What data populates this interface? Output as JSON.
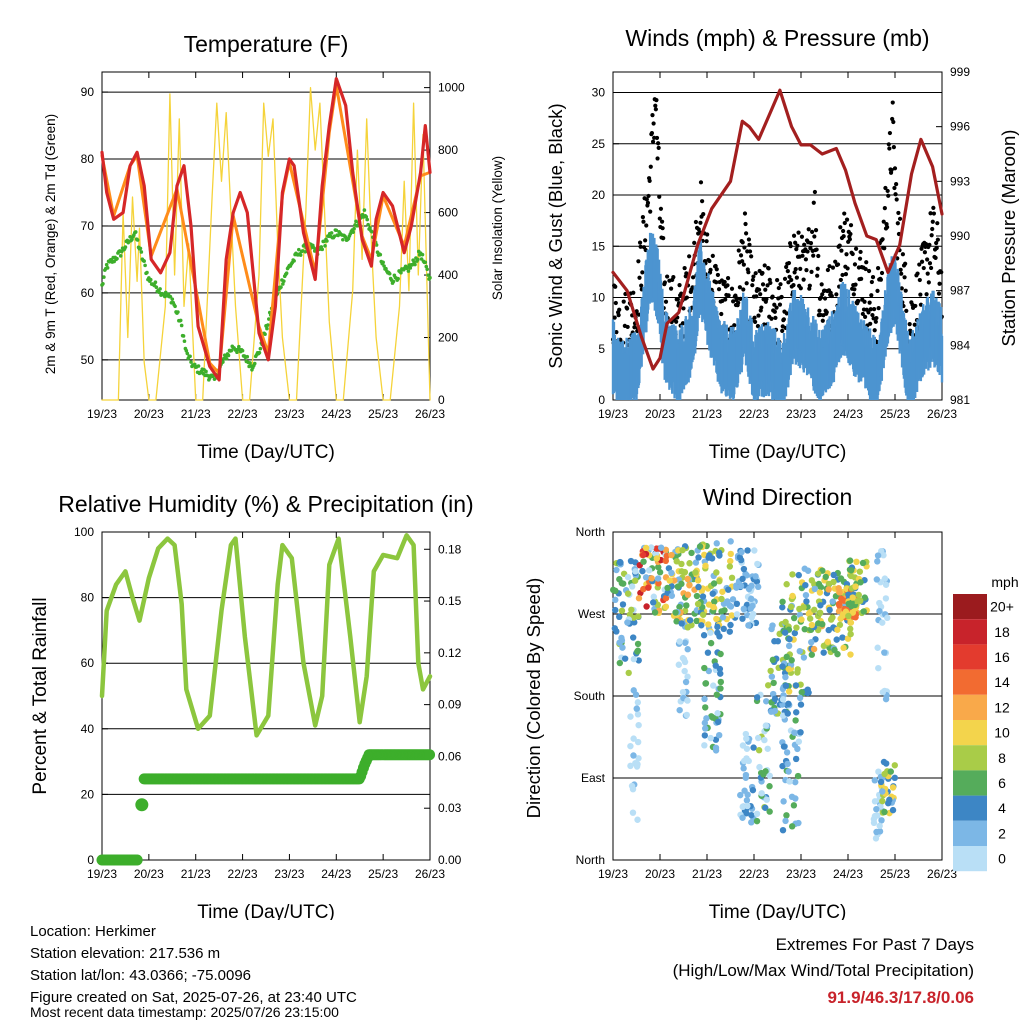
{
  "chart_data": [
    {
      "type": "line",
      "title": "Temperature (F)",
      "xlabel": "Time (Day/UTC)",
      "ylabel": "2m & 9m T (Red, Orange) & 2m Td (Green)",
      "ylabel_right": "Solar Insolation (Yellow)",
      "x_ticks": [
        "19/23",
        "20/23",
        "21/23",
        "22/23",
        "23/23",
        "24/23",
        "25/23",
        "26/23"
      ],
      "y_ticks": [
        "50",
        "60",
        "70",
        "80",
        "90"
      ],
      "y_ticks_right": [
        "0",
        "200",
        "400",
        "600",
        "800",
        "1000"
      ],
      "ylim": [
        44,
        93
      ],
      "ylim_right": [
        0,
        1050
      ],
      "grid": true,
      "x_units": "days since 19/23",
      "series": [
        {
          "name": "2m T",
          "color": "#d62728",
          "axis": "left",
          "x": [
            0,
            0.1,
            0.25,
            0.45,
            0.6,
            0.75,
            0.9,
            1.05,
            1.25,
            1.45,
            1.6,
            1.75,
            1.9,
            2.05,
            2.3,
            2.5,
            2.65,
            2.8,
            2.95,
            3.1,
            3.35,
            3.55,
            3.7,
            3.85,
            4.0,
            4.1,
            4.3,
            4.55,
            4.7,
            4.85,
            5.0,
            5.2,
            5.35,
            5.55,
            5.75,
            5.85,
            6.0,
            6.2,
            6.45,
            6.6,
            6.8,
            6.9,
            7.0
          ],
          "y": [
            81,
            75,
            71,
            72,
            79,
            81,
            76,
            65,
            63,
            66,
            76,
            79,
            70,
            55,
            49,
            47,
            65,
            72,
            75,
            72,
            54,
            50,
            58,
            75,
            80,
            79,
            69,
            62,
            76,
            85,
            92,
            88,
            78,
            68,
            64,
            71,
            75,
            73,
            66,
            70,
            78,
            85,
            78
          ]
        },
        {
          "name": "9m T",
          "color": "#ff8c1a",
          "axis": "left",
          "x": [
            0,
            0.25,
            0.6,
            0.75,
            1.05,
            1.6,
            2.3,
            2.5,
            2.8,
            3.35,
            3.55,
            3.85,
            4.0,
            4.55,
            4.85,
            5.0,
            5.55,
            5.75,
            6.0,
            6.45,
            6.8,
            7.0
          ],
          "y": [
            80.5,
            71.5,
            79,
            80.5,
            65.5,
            75.5,
            49.5,
            48,
            71.5,
            55,
            51,
            74.5,
            79.5,
            63,
            84,
            91,
            68.5,
            65,
            74.5,
            67,
            77.5,
            78
          ]
        },
        {
          "name": "2m Td",
          "color": "#3dae2b",
          "axis": "left",
          "x": [
            0,
            0.1,
            0.4,
            0.7,
            1.0,
            1.3,
            1.5,
            1.7,
            1.8,
            1.95,
            2.2,
            2.4,
            2.6,
            2.8,
            3.0,
            3.2,
            3.4,
            3.6,
            3.8,
            4.0,
            4.2,
            4.4,
            4.6,
            4.8,
            5.0,
            5.2,
            5.4,
            5.6,
            5.8,
            6.0,
            6.2,
            6.4,
            6.6,
            6.8,
            7.0
          ],
          "y": [
            61,
            64,
            66,
            69,
            62,
            60,
            59,
            55,
            51,
            49,
            48,
            47,
            50,
            52,
            51,
            49,
            52,
            57,
            61,
            64,
            66,
            67,
            66,
            68,
            69,
            68,
            70,
            72,
            68,
            64,
            62,
            63,
            64,
            66,
            62
          ]
        },
        {
          "name": "Solar Insolation",
          "color": "#f5d33a",
          "axis": "right",
          "x": [
            0,
            0.35,
            0.45,
            0.55,
            0.65,
            0.75,
            0.8,
            0.9,
            1.0,
            1.15,
            1.35,
            1.45,
            1.55,
            1.65,
            1.75,
            1.85,
            2.0,
            2.15,
            2.35,
            2.45,
            2.55,
            2.65,
            2.75,
            2.85,
            3.0,
            3.15,
            3.35,
            3.45,
            3.55,
            3.65,
            3.75,
            3.85,
            4.0,
            4.15,
            4.35,
            4.45,
            4.55,
            4.65,
            4.75,
            4.85,
            5.0,
            5.15,
            5.35,
            5.45,
            5.55,
            5.65,
            5.75,
            5.85,
            6.0,
            6.15,
            6.35,
            6.45,
            6.55,
            6.65,
            6.75,
            6.85,
            7.0
          ],
          "y": [
            0,
            0,
            600,
            200,
            650,
            380,
            550,
            120,
            0,
            0,
            300,
            980,
            400,
            900,
            300,
            500,
            0,
            0,
            650,
            950,
            700,
            920,
            600,
            300,
            0,
            0,
            400,
            950,
            780,
            900,
            500,
            200,
            0,
            0,
            600,
            1000,
            800,
            950,
            600,
            250,
            0,
            0,
            350,
            800,
            450,
            900,
            500,
            200,
            0,
            0,
            300,
            700,
            350,
            950,
            400,
            850,
            0
          ]
        }
      ]
    },
    {
      "type": "scatter",
      "title": "Winds (mph) & Pressure (mb)",
      "xlabel": "Time (Day/UTC)",
      "ylabel": "Sonic Wind & Gust (Blue, Black)",
      "ylabel_right": "Station Pressure (Maroon)",
      "x_ticks": [
        "19/23",
        "20/23",
        "21/23",
        "22/23",
        "23/23",
        "24/23",
        "25/23",
        "26/23"
      ],
      "y_ticks": [
        "0",
        "5",
        "10",
        "15",
        "20",
        "25",
        "30"
      ],
      "y_ticks_right": [
        "981",
        "984",
        "987",
        "990",
        "993",
        "996",
        "999"
      ],
      "ylim": [
        0,
        32
      ],
      "ylim_right": [
        981,
        999
      ],
      "grid": true,
      "x_units": "days since 19/23",
      "series": [
        {
          "name": "Sonic Wind",
          "color": "#4d94d0",
          "axis": "left",
          "x": [
            0,
            0.2,
            0.5,
            0.8,
            0.95,
            1.1,
            1.4,
            1.7,
            1.85,
            2.1,
            2.3,
            2.55,
            2.8,
            3.0,
            3.3,
            3.6,
            3.85,
            4.1,
            4.4,
            4.7,
            4.9,
            5.1,
            5.35,
            5.6,
            5.85,
            6.0,
            6.3,
            6.55,
            6.8,
            7.0
          ],
          "y": [
            5,
            3,
            4,
            14,
            12,
            6,
            4,
            7,
            13,
            8,
            5,
            4,
            8,
            4,
            5,
            3,
            8,
            7,
            4,
            6,
            9,
            7,
            5,
            3,
            10,
            12,
            3,
            6,
            8,
            6
          ]
        },
        {
          "name": "Gust",
          "color": "#000000",
          "axis": "left",
          "x": [
            0,
            0.2,
            0.5,
            0.8,
            0.9,
            1.0,
            1.1,
            1.4,
            1.7,
            1.85,
            1.95,
            2.1,
            2.3,
            2.55,
            2.8,
            3.0,
            3.3,
            3.6,
            3.85,
            4.1,
            4.3,
            4.4,
            4.7,
            4.9,
            5.1,
            5.35,
            5.6,
            5.85,
            5.95,
            6.05,
            6.3,
            6.55,
            6.8,
            6.9,
            7.0
          ],
          "y": [
            9,
            7,
            9,
            22,
            30,
            18,
            10,
            8,
            12,
            19,
            14,
            12,
            9,
            8,
            15,
            9,
            10,
            8,
            14,
            12,
            18,
            10,
            10,
            16,
            14,
            11,
            8,
            21,
            26,
            17,
            7,
            11,
            16,
            14,
            10
          ]
        },
        {
          "name": "Station Pressure",
          "color": "#a31f1f",
          "axis": "right",
          "x": [
            0,
            0.3,
            0.6,
            0.85,
            1.0,
            1.15,
            1.4,
            1.8,
            2.1,
            2.5,
            2.75,
            2.9,
            3.1,
            3.35,
            3.55,
            3.8,
            4.0,
            4.2,
            4.45,
            4.75,
            4.95,
            5.15,
            5.4,
            5.6,
            5.85,
            6.1,
            6.35,
            6.55,
            6.8,
            7.0
          ],
          "y": [
            988,
            987,
            984.5,
            982.7,
            983.3,
            985.2,
            985.8,
            989.5,
            991.5,
            993,
            996.3,
            996,
            995.3,
            996.8,
            998,
            996,
            995,
            995,
            994.5,
            994.8,
            993.6,
            991.8,
            990,
            989.8,
            988,
            989.5,
            993.4,
            995.3,
            993.8,
            991.2
          ]
        }
      ]
    },
    {
      "type": "line",
      "title": "Relative Humidity (%) & Precipitation (in)",
      "xlabel": "Time (Day/UTC)",
      "ylabel": "Percent & Total Rainfall",
      "x_ticks": [
        "19/23",
        "20/23",
        "21/23",
        "22/23",
        "23/23",
        "24/23",
        "25/23",
        "26/23"
      ],
      "y_ticks": [
        "0",
        "20",
        "40",
        "60",
        "80",
        "100"
      ],
      "y_ticks_right": [
        "0.00",
        "0.03",
        "0.06",
        "0.09",
        "0.12",
        "0.15",
        "0.18"
      ],
      "ylim": [
        0,
        100
      ],
      "ylim_right": [
        0,
        0.19
      ],
      "grid": true,
      "x_units": "days since 19/23",
      "series": [
        {
          "name": "Relative Humidity",
          "color": "#8cc63e",
          "axis": "left",
          "x": [
            0,
            0.1,
            0.3,
            0.5,
            0.65,
            0.8,
            1.0,
            1.2,
            1.4,
            1.55,
            1.7,
            1.8,
            2.05,
            2.3,
            2.55,
            2.75,
            2.85,
            3.05,
            3.3,
            3.55,
            3.75,
            3.85,
            4.05,
            4.3,
            4.55,
            4.7,
            4.85,
            5.05,
            5.3,
            5.5,
            5.65,
            5.8,
            6.0,
            6.3,
            6.5,
            6.65,
            6.75,
            6.85,
            7.0
          ],
          "y": [
            50,
            76,
            84,
            88,
            80,
            73,
            86,
            95,
            98,
            96,
            78,
            52,
            40,
            44,
            76,
            96,
            98,
            68,
            38,
            44,
            84,
            96,
            92,
            60,
            41,
            50,
            90,
            98,
            68,
            42,
            56,
            88,
            93,
            92,
            99,
            96,
            60,
            52,
            56
          ]
        },
        {
          "name": "Total Precipitation",
          "color": "#3dae2b",
          "axis": "right",
          "x": [
            0,
            0.8,
            0.85,
            0.88,
            1.0,
            1.5,
            2.0,
            3.0,
            4.0,
            5.0,
            5.5,
            5.6,
            5.7,
            6.0,
            7.0
          ],
          "y": [
            0,
            0,
            0.032,
            0.047,
            0.047,
            0.047,
            0.047,
            0.047,
            0.047,
            0.047,
            0.047,
            0.055,
            0.061,
            0.061,
            0.061
          ]
        }
      ]
    },
    {
      "type": "scatter",
      "title": "Wind Direction",
      "xlabel": "Time (Day/UTC)",
      "ylabel": "Direction (Colored By Speed)",
      "x_ticks": [
        "19/23",
        "20/23",
        "21/23",
        "22/23",
        "23/23",
        "24/23",
        "25/23",
        "26/23"
      ],
      "y_ticks": [
        "North",
        "East",
        "South",
        "West",
        "North"
      ],
      "ylim": [
        0,
        360
      ],
      "grid": true,
      "x_units": "days since 19/23",
      "colorbar": {
        "label": "mph",
        "labels": [
          "20+",
          "18",
          "16",
          "14",
          "12",
          "10",
          "8",
          "6",
          "4",
          "2",
          "0"
        ],
        "colors": [
          "#9b1b1e",
          "#c8232b",
          "#e33b2e",
          "#f26b31",
          "#f9a94a",
          "#f3d44c",
          "#a9cc48",
          "#55ac5b",
          "#3d86c5",
          "#7cb7e6",
          "#b9dff6"
        ]
      },
      "clusters": [
        {
          "x": [
            0,
            0.55
          ],
          "dir": [
            205,
            330
          ],
          "speed": [
            1,
            9
          ]
        },
        {
          "x": [
            0.35,
            0.55
          ],
          "dir": [
            20,
            190
          ],
          "speed": [
            0,
            3
          ]
        },
        {
          "x": [
            0.55,
            1.15
          ],
          "dir": [
            270,
            345
          ],
          "speed": [
            1,
            20
          ]
        },
        {
          "x": [
            1.15,
            1.75
          ],
          "dir": [
            255,
            345
          ],
          "speed": [
            2,
            14
          ]
        },
        {
          "x": [
            1.4,
            1.6
          ],
          "dir": [
            155,
            245
          ],
          "speed": [
            0,
            4
          ]
        },
        {
          "x": [
            1.75,
            2.6
          ],
          "dir": [
            245,
            350
          ],
          "speed": [
            2,
            12
          ]
        },
        {
          "x": [
            1.9,
            2.3
          ],
          "dir": [
            120,
            250
          ],
          "speed": [
            1,
            8
          ]
        },
        {
          "x": [
            2.6,
            3.1
          ],
          "dir": [
            255,
            340
          ],
          "speed": [
            1,
            5
          ]
        },
        {
          "x": [
            2.7,
            3.0
          ],
          "dir": [
            40,
            140
          ],
          "speed": [
            0,
            5
          ]
        },
        {
          "x": [
            3.05,
            3.35
          ],
          "dir": [
            30,
            200
          ],
          "speed": [
            0,
            9
          ]
        },
        {
          "x": [
            3.35,
            3.75
          ],
          "dir": [
            160,
            260
          ],
          "speed": [
            2,
            9
          ]
        },
        {
          "x": [
            3.6,
            4.2
          ],
          "dir": [
            180,
            330
          ],
          "speed": [
            3,
            11
          ]
        },
        {
          "x": [
            3.6,
            4.0
          ],
          "dir": [
            30,
            180
          ],
          "speed": [
            1,
            7
          ]
        },
        {
          "x": [
            4.2,
            5.1
          ],
          "dir": [
            225,
            320
          ],
          "speed": [
            3,
            13
          ]
        },
        {
          "x": [
            4.8,
            5.2
          ],
          "dir": [
            265,
            300
          ],
          "speed": [
            10,
            16
          ]
        },
        {
          "x": [
            5.0,
            5.4
          ],
          "dir": [
            265,
            330
          ],
          "speed": [
            4,
            12
          ]
        },
        {
          "x": [
            5.6,
            5.85
          ],
          "dir": [
            175,
            345
          ],
          "speed": [
            0,
            3
          ]
        },
        {
          "x": [
            5.55,
            5.75
          ],
          "dir": [
            20,
            110
          ],
          "speed": [
            0,
            3
          ]
        },
        {
          "x": [
            5.7,
            6.0
          ],
          "dir": [
            50,
            110
          ],
          "speed": [
            3,
            12
          ]
        }
      ]
    }
  ],
  "info": {
    "location": "Location: Herkimer",
    "elevation": "Station elevation: 217.536 m",
    "latlon": "Station lat/lon: 43.0366; -75.0096",
    "created": "Figure created on Sat, 2025-07-26, at 23:40 UTC",
    "recent": "Most recent data timestamp: 2025/07/26 23:15:00"
  },
  "extremes": {
    "title": "Extremes For Past 7 Days",
    "subtitle": "(High/Low/Max Wind/Total Precipitation)",
    "values": "91.9/46.3/17.8/0.06",
    "values_color": "#c8232b"
  }
}
